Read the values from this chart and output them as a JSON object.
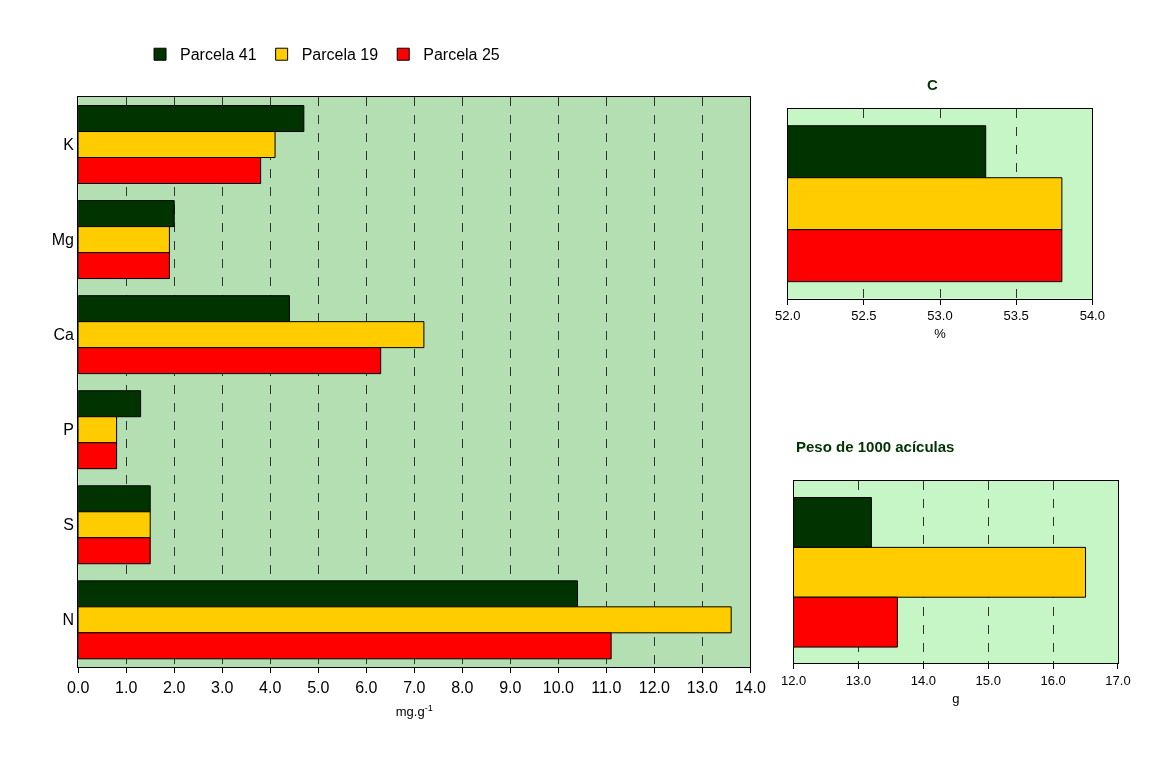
{
  "chart_data": [
    {
      "type": "bar",
      "orientation": "horizontal",
      "categories": [
        "K",
        "Mg",
        "Ca",
        "P",
        "S",
        "N"
      ],
      "xlabel": "mg.g$^{-1}$",
      "xlim": [
        0,
        14
      ],
      "xticks": [
        {
          "value": 0,
          "label": "0.0"
        },
        {
          "value": 1,
          "label": "1.0"
        },
        {
          "value": 2,
          "label": "2.0"
        },
        {
          "value": 3,
          "label": "3.0"
        },
        {
          "value": 4,
          "label": "4.0"
        },
        {
          "value": 5,
          "label": "5.0"
        },
        {
          "value": 6,
          "label": "6.0"
        },
        {
          "value": 7,
          "label": "7.0"
        },
        {
          "value": 8,
          "label": "8.0"
        },
        {
          "value": 9,
          "label": "9.0"
        },
        {
          "value": 10,
          "label": "10.0"
        },
        {
          "value": 11,
          "label": "11.0"
        },
        {
          "value": 12,
          "label": "12.0"
        },
        {
          "value": 13,
          "label": "13.0"
        },
        {
          "value": 14,
          "label": "14.0"
        }
      ],
      "grid": "x",
      "legend": "top",
      "series": [
        {
          "name": "Parcela 41",
          "color": "#003300",
          "values": [
            4.7,
            2.0,
            4.4,
            1.3,
            1.5,
            10.4
          ]
        },
        {
          "name": "Parcela 19",
          "color": "#ffcc00",
          "values": [
            4.1,
            1.9,
            7.2,
            0.8,
            1.5,
            13.6
          ]
        },
        {
          "name": "Parcela 25",
          "color": "#ff0000",
          "values": [
            3.8,
            1.9,
            6.3,
            0.8,
            1.5,
            11.1
          ]
        }
      ]
    },
    {
      "type": "bar",
      "orientation": "horizontal",
      "title": "C",
      "categories": [
        null
      ],
      "xlabel": "%",
      "xlim": [
        52,
        54
      ],
      "xticks": [
        {
          "value": 52,
          "label": "52.0"
        },
        {
          "value": 52.5,
          "label": "52.5"
        },
        {
          "value": 53,
          "label": "53.0"
        },
        {
          "value": 53.5,
          "label": "53.5"
        },
        {
          "value": 54,
          "label": "54.0"
        }
      ],
      "grid": "x",
      "tick_labels": "x",
      "series": [
        {
          "color": "#003300",
          "values": [
            53.3
          ]
        },
        {
          "color": "#ffcc00",
          "values": [
            53.8
          ]
        },
        {
          "color": "#ff0000",
          "values": [
            53.8
          ]
        }
      ]
    },
    {
      "type": "bar",
      "orientation": "horizontal",
      "title": "Peso de 1000 acículas",
      "categories": [
        null
      ],
      "xlabel": "g",
      "xlim": [
        12,
        17
      ],
      "xticks": [
        {
          "value": 12,
          "label": "12.0"
        },
        {
          "value": 13,
          "label": "13.0"
        },
        {
          "value": 14,
          "label": "14.0"
        },
        {
          "value": 15,
          "label": "15.0"
        },
        {
          "value": 16,
          "label": "16.0"
        },
        {
          "value": 17,
          "label": "17.0"
        }
      ],
      "grid": "x",
      "tick_labels": "x",
      "series": [
        {
          "color": "#003300",
          "values": [
            13.2
          ]
        },
        {
          "color": "#ffcc00",
          "values": [
            16.5
          ]
        },
        {
          "color": "#ff0000",
          "values": [
            13.6
          ]
        }
      ]
    }
  ]
}
